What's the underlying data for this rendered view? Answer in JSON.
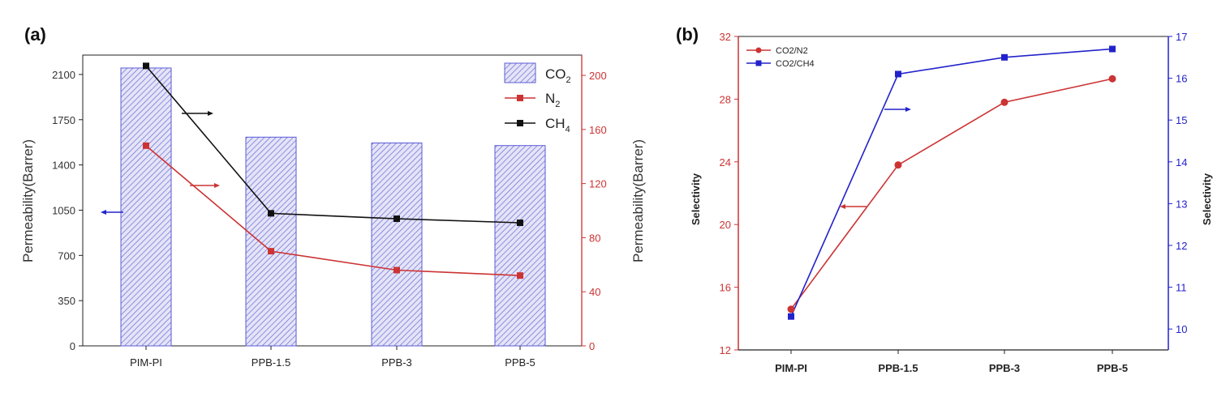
{
  "colors": {
    "co2_bar": "#5b5bd6",
    "n2": "#cc3333",
    "ch4": "#111111",
    "co2_n2": "#cc3333",
    "co2_ch4": "#2222cc",
    "axis": "#222222"
  },
  "chart_data": [
    {
      "panel_label": "(a)",
      "type": "bar",
      "categories": [
        "PIM-PI",
        "PPB-1.5",
        "PPB-3",
        "PPB-5"
      ],
      "series": [
        {
          "name": "CO",
          "name_sub": "2",
          "type": "bar",
          "axis": "left",
          "values": [
            2150,
            1615,
            1570,
            1550
          ]
        },
        {
          "name": "N",
          "name_sub": "2",
          "type": "line",
          "axis": "right",
          "values": [
            148,
            70,
            56,
            52
          ]
        },
        {
          "name": "CH",
          "name_sub": "4",
          "type": "line",
          "axis": "right",
          "values": [
            207,
            98,
            94,
            91
          ]
        }
      ],
      "ylabel_left": "Permeability(Barrer)",
      "ylabel_right": "Permeability(Barrer)",
      "ylim_left": [
        0,
        2250
      ],
      "yticks_left": [
        0,
        350,
        700,
        1050,
        1400,
        1750,
        2100
      ],
      "yticks_left_labels": [
        "0",
        "350",
        "700",
        "1050",
        "1400",
        "1750",
        "2100"
      ],
      "ylim_right": [
        0,
        215
      ],
      "yticks_right": [
        0,
        40,
        80,
        120,
        160,
        200
      ],
      "yticks_right_labels": [
        "0",
        "40",
        "80",
        "120",
        "160",
        "200"
      ],
      "legend": "top-right"
    },
    {
      "panel_label": "(b)",
      "type": "line",
      "categories": [
        "PIM-PI",
        "PPB-1.5",
        "PPB-3",
        "PPB-5"
      ],
      "series": [
        {
          "name": "CO2/N2",
          "axis": "left",
          "values": [
            14.6,
            23.8,
            27.8,
            29.3
          ]
        },
        {
          "name": "CO2/CH4",
          "axis": "right",
          "values": [
            10.3,
            16.1,
            16.5,
            16.7
          ]
        }
      ],
      "ylabel_left": "Selectivity",
      "ylabel_right": "Selectivity",
      "ylim_left": [
        12,
        32
      ],
      "yticks_left": [
        12,
        16,
        20,
        24,
        28,
        32
      ],
      "yticks_left_labels": [
        "12",
        "16",
        "20",
        "24",
        "28",
        "32"
      ],
      "ylim_right": [
        9.5,
        17
      ],
      "yticks_right": [
        10,
        11,
        12,
        13,
        14,
        15,
        16,
        17
      ],
      "yticks_right_labels": [
        "10",
        "11",
        "12",
        "13",
        "14",
        "15",
        "16",
        "17"
      ],
      "legend": "top-left"
    }
  ]
}
